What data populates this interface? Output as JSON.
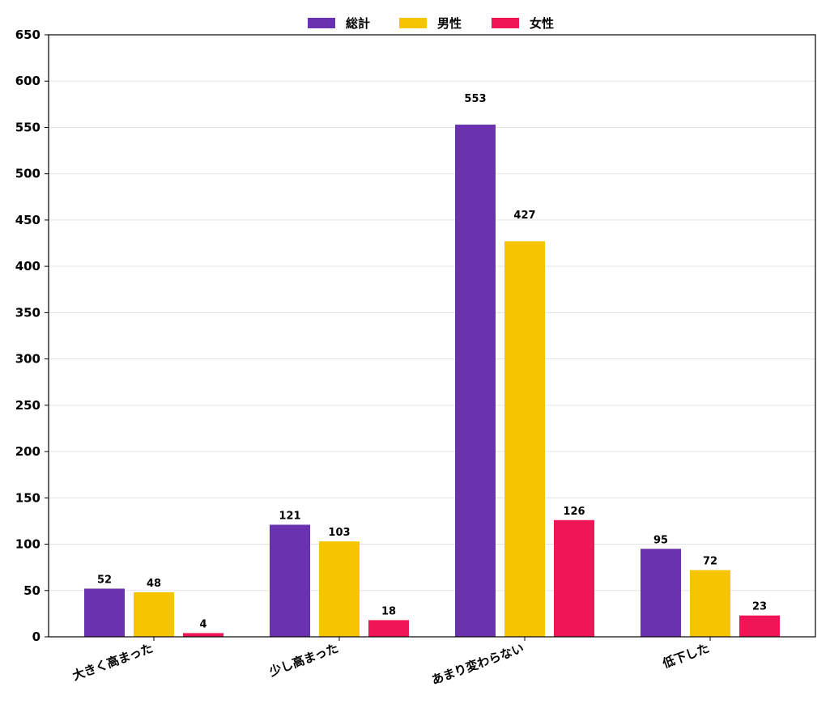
{
  "chart_data": {
    "type": "bar",
    "categories": [
      "大きく高まった",
      "少し高まった",
      "あまり変わらない",
      "低下した"
    ],
    "series": [
      {
        "name": "総計",
        "color": "#6a32ae",
        "values": [
          52,
          121,
          553,
          95
        ]
      },
      {
        "name": "男性",
        "color": "#f7c400",
        "values": [
          48,
          103,
          427,
          72
        ]
      },
      {
        "name": "女性",
        "color": "#f01656",
        "values": [
          4,
          18,
          126,
          23
        ]
      }
    ],
    "ylim": [
      0,
      650
    ],
    "yticks": [
      0,
      50,
      100,
      150,
      200,
      250,
      300,
      350,
      400,
      450,
      500,
      550,
      600,
      650
    ],
    "grid": true,
    "legend_position": "top-center",
    "title": "",
    "xlabel": "",
    "ylabel": ""
  }
}
